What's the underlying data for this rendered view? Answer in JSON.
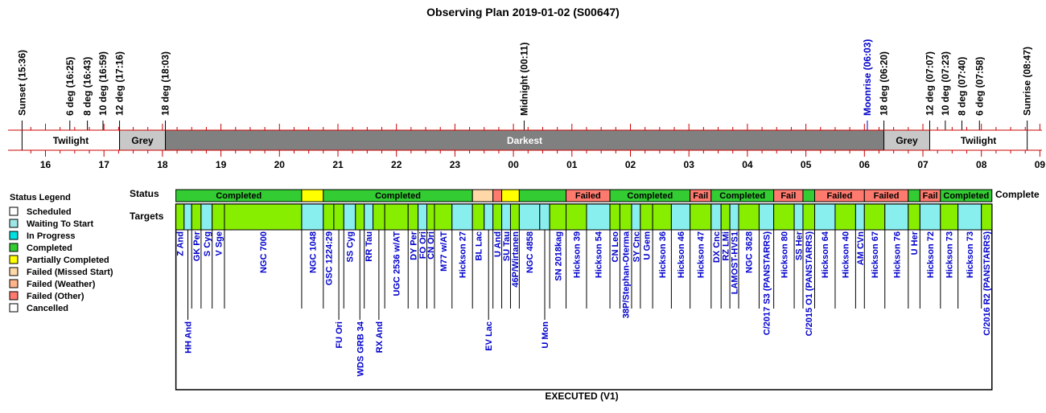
{
  "chart_data": {
    "type": "timeline",
    "title": "Observing Plan 2019-01-02 (S00647)",
    "footer": "EXECUTED (V1)",
    "hour_range": [
      15.5,
      33.0
    ],
    "hour_ticks": [
      {
        "label": "16",
        "h": 16
      },
      {
        "label": "17",
        "h": 17
      },
      {
        "label": "18",
        "h": 18
      },
      {
        "label": "19",
        "h": 19
      },
      {
        "label": "20",
        "h": 20
      },
      {
        "label": "21",
        "h": 21
      },
      {
        "label": "22",
        "h": 22
      },
      {
        "label": "23",
        "h": 23
      },
      {
        "label": "00",
        "h": 24
      },
      {
        "label": "01",
        "h": 25
      },
      {
        "label": "02",
        "h": 26
      },
      {
        "label": "03",
        "h": 27
      },
      {
        "label": "04",
        "h": 28
      },
      {
        "label": "05",
        "h": 29
      },
      {
        "label": "06",
        "h": 30
      },
      {
        "label": "07",
        "h": 31
      },
      {
        "label": "08",
        "h": 32
      },
      {
        "label": "09",
        "h": 33
      }
    ],
    "events": [
      {
        "label": "Sunset (15:36)",
        "h": 15.6,
        "color": "#000000"
      },
      {
        "label": "6 deg (16:25)",
        "h": 16.4167,
        "color": "#000000"
      },
      {
        "label": "8 deg (16:43)",
        "h": 16.7167,
        "color": "#000000"
      },
      {
        "label": "10 deg (16:59)",
        "h": 16.9833,
        "color": "#000000"
      },
      {
        "label": "12 deg (17:16)",
        "h": 17.2667,
        "color": "#000000"
      },
      {
        "label": "18 deg (18:03)",
        "h": 18.05,
        "color": "#000000"
      },
      {
        "label": "Midnight (00:11)",
        "h": 24.1833,
        "color": "#000000"
      },
      {
        "label": "Moonrise (06:03)",
        "h": 30.05,
        "color": "#0000cc"
      },
      {
        "label": "18 deg (06:20)",
        "h": 30.3333,
        "color": "#000000"
      },
      {
        "label": "12 deg (07:07)",
        "h": 31.1167,
        "color": "#000000"
      },
      {
        "label": "10 deg (07:23)",
        "h": 31.3833,
        "color": "#000000"
      },
      {
        "label": "8 deg (07:40)",
        "h": 31.6667,
        "color": "#000000"
      },
      {
        "label": "6 deg (07:58)",
        "h": 31.9667,
        "color": "#000000"
      },
      {
        "label": "Sunrise (08:47)",
        "h": 32.7833,
        "color": "#000000"
      }
    ],
    "sky_bands": [
      {
        "label": "Twilight",
        "start": 15.6,
        "end": 17.2667,
        "color": "#ffffff",
        "text_color": "#000000"
      },
      {
        "label": "Grey",
        "start": 17.2667,
        "end": 18.05,
        "color": "#c8c8c8",
        "text_color": "#000000"
      },
      {
        "label": "Darkest",
        "start": 18.05,
        "end": 30.3333,
        "color": "#808080",
        "text_color": "#ffffff"
      },
      {
        "label": "Grey",
        "start": 30.3333,
        "end": 31.1167,
        "color": "#c8c8c8",
        "text_color": "#000000"
      },
      {
        "label": "Twilight",
        "start": 31.1167,
        "end": 32.7833,
        "color": "#ffffff",
        "text_color": "#000000"
      }
    ],
    "status_row_label": "Status",
    "targets_row_label": "Targets",
    "status_overflow_label": "Complete",
    "status_segments": [
      {
        "label": "Completed",
        "start": 18.23,
        "end": 20.38,
        "status": "completed"
      },
      {
        "label": "",
        "start": 20.38,
        "end": 20.75,
        "status": "partial"
      },
      {
        "label": "Completed",
        "start": 20.75,
        "end": 23.3,
        "status": "completed"
      },
      {
        "label": "",
        "start": 23.3,
        "end": 23.65,
        "status": "missed"
      },
      {
        "label": "",
        "start": 23.65,
        "end": 23.8,
        "status": "failed"
      },
      {
        "label": "",
        "start": 23.8,
        "end": 24.1,
        "status": "partial"
      },
      {
        "label": "",
        "start": 24.1,
        "end": 24.9,
        "status": "completed"
      },
      {
        "label": "Failed",
        "start": 24.9,
        "end": 25.65,
        "status": "failed"
      },
      {
        "label": "Completed",
        "start": 25.65,
        "end": 27.02,
        "status": "completed"
      },
      {
        "label": "Fail",
        "start": 27.02,
        "end": 27.38,
        "status": "failed"
      },
      {
        "label": "Completed",
        "start": 27.38,
        "end": 28.45,
        "status": "completed"
      },
      {
        "label": "Fail",
        "start": 28.45,
        "end": 28.95,
        "status": "failed"
      },
      {
        "label": "",
        "start": 28.95,
        "end": 29.15,
        "status": "completed"
      },
      {
        "label": "Failed",
        "start": 29.15,
        "end": 30.0,
        "status": "failed"
      },
      {
        "label": "Failed",
        "start": 30.0,
        "end": 30.75,
        "status": "failed"
      },
      {
        "label": "",
        "start": 30.75,
        "end": 30.95,
        "status": "completed"
      },
      {
        "label": "Fail",
        "start": 30.95,
        "end": 31.3,
        "status": "failed"
      },
      {
        "label": "Completed",
        "start": 31.3,
        "end": 32.18,
        "status": "completed"
      }
    ],
    "targets": [
      {
        "name": "Z And",
        "start": 18.23,
        "end": 18.37,
        "pos": "upper",
        "fill": "green"
      },
      {
        "name": "HH And",
        "start": 18.37,
        "end": 18.5,
        "pos": "lower",
        "fill": "cyan"
      },
      {
        "name": "GK Per",
        "start": 18.5,
        "end": 18.66,
        "pos": "upper",
        "fill": "green"
      },
      {
        "name": "S Cyg",
        "start": 18.66,
        "end": 18.85,
        "pos": "upper",
        "fill": "cyan"
      },
      {
        "name": "V Sge",
        "start": 18.85,
        "end": 19.06,
        "pos": "upper",
        "fill": "green"
      },
      {
        "name": "NGC 7000",
        "start": 19.06,
        "end": 20.38,
        "pos": "upper",
        "fill": "green"
      },
      {
        "name": "NGC 1048",
        "start": 20.38,
        "end": 20.75,
        "pos": "upper",
        "fill": "cyan"
      },
      {
        "name": "GSC 1224:29",
        "start": 20.75,
        "end": 20.93,
        "pos": "upper",
        "fill": "green"
      },
      {
        "name": "FU Ori",
        "start": 20.93,
        "end": 21.1,
        "pos": "lower",
        "fill": "green"
      },
      {
        "name": "SS Cyg",
        "start": 21.1,
        "end": 21.3,
        "pos": "upper",
        "fill": "cyan"
      },
      {
        "name": "WDS GRB 34",
        "start": 21.3,
        "end": 21.45,
        "pos": "lower",
        "fill": "green"
      },
      {
        "name": "RR Tau",
        "start": 21.45,
        "end": 21.6,
        "pos": "upper",
        "fill": "cyan"
      },
      {
        "name": "RX And",
        "start": 21.6,
        "end": 21.8,
        "pos": "lower",
        "fill": "green"
      },
      {
        "name": "UGC 2536 w/AT",
        "start": 21.8,
        "end": 22.2,
        "pos": "upper",
        "fill": "green"
      },
      {
        "name": "DY Per",
        "start": 22.2,
        "end": 22.37,
        "pos": "upper",
        "fill": "green"
      },
      {
        "name": "FO Ori",
        "start": 22.37,
        "end": 22.52,
        "pos": "upper",
        "fill": "cyan"
      },
      {
        "name": "CN Ori",
        "start": 22.52,
        "end": 22.65,
        "pos": "upper",
        "fill": "green"
      },
      {
        "name": "M77 w/AT",
        "start": 22.65,
        "end": 22.95,
        "pos": "upper",
        "fill": "green"
      },
      {
        "name": "Hickson 27",
        "start": 22.95,
        "end": 23.3,
        "pos": "upper",
        "fill": "cyan"
      },
      {
        "name": "BL Lac",
        "start": 23.3,
        "end": 23.5,
        "pos": "upper",
        "fill": "green"
      },
      {
        "name": "EV Lac",
        "start": 23.5,
        "end": 23.65,
        "pos": "lower",
        "fill": "cyan"
      },
      {
        "name": "U And",
        "start": 23.65,
        "end": 23.8,
        "pos": "upper",
        "fill": "green"
      },
      {
        "name": "SU Tau",
        "start": 23.8,
        "end": 23.95,
        "pos": "upper",
        "fill": "cyan"
      },
      {
        "name": "46P/Wirtanen",
        "start": 23.95,
        "end": 24.1,
        "pos": "upper",
        "fill": "green"
      },
      {
        "name": "NGC 4858",
        "start": 24.1,
        "end": 24.45,
        "pos": "upper",
        "fill": "cyan"
      },
      {
        "name": "U Mon",
        "start": 24.45,
        "end": 24.62,
        "pos": "lower",
        "fill": "cyan"
      },
      {
        "name": "SN 2018kag",
        "start": 24.62,
        "end": 24.9,
        "pos": "upper",
        "fill": "green"
      },
      {
        "name": "Hickson 39",
        "start": 24.9,
        "end": 25.25,
        "pos": "upper",
        "fill": "green"
      },
      {
        "name": "Hickson 54",
        "start": 25.25,
        "end": 25.65,
        "pos": "upper",
        "fill": "cyan"
      },
      {
        "name": "CN Leo",
        "start": 25.65,
        "end": 25.82,
        "pos": "upper",
        "fill": "green"
      },
      {
        "name": "38P/Stephan-Oterma",
        "start": 25.82,
        "end": 26.02,
        "pos": "upper",
        "fill": "green"
      },
      {
        "name": "SY Cnc",
        "start": 26.02,
        "end": 26.17,
        "pos": "upper",
        "fill": "cyan"
      },
      {
        "name": "U Gem",
        "start": 26.17,
        "end": 26.38,
        "pos": "upper",
        "fill": "green"
      },
      {
        "name": "Hickson 36",
        "start": 26.38,
        "end": 26.7,
        "pos": "upper",
        "fill": "green"
      },
      {
        "name": "Hickson 46",
        "start": 26.7,
        "end": 27.02,
        "pos": "upper",
        "fill": "cyan"
      },
      {
        "name": "Hickson 47",
        "start": 27.02,
        "end": 27.38,
        "pos": "upper",
        "fill": "green"
      },
      {
        "name": "DX Cnc",
        "start": 27.38,
        "end": 27.55,
        "pos": "upper",
        "fill": "cyan"
      },
      {
        "name": "RZ LMi",
        "start": 27.55,
        "end": 27.7,
        "pos": "upper",
        "fill": "green"
      },
      {
        "name": "LAMOST-HVS1",
        "start": 27.7,
        "end": 27.85,
        "pos": "upper",
        "fill": "cyan"
      },
      {
        "name": "NGC 3628",
        "start": 27.85,
        "end": 28.2,
        "pos": "upper",
        "fill": "green"
      },
      {
        "name": "C/2017 S3 (PANSTARRS)",
        "start": 28.2,
        "end": 28.45,
        "pos": "upper",
        "fill": "cyan"
      },
      {
        "name": "Hickson 80",
        "start": 28.45,
        "end": 28.8,
        "pos": "upper",
        "fill": "green"
      },
      {
        "name": "SS Her",
        "start": 28.8,
        "end": 28.95,
        "pos": "upper",
        "fill": "cyan"
      },
      {
        "name": "C/2015 O1 (PANSTARRS)",
        "start": 28.95,
        "end": 29.15,
        "pos": "upper",
        "fill": "green"
      },
      {
        "name": "Hickson 64",
        "start": 29.15,
        "end": 29.5,
        "pos": "upper",
        "fill": "cyan"
      },
      {
        "name": "Hickson 40",
        "start": 29.5,
        "end": 29.85,
        "pos": "upper",
        "fill": "green"
      },
      {
        "name": "AM CVn",
        "start": 29.85,
        "end": 30.0,
        "pos": "upper",
        "fill": "cyan"
      },
      {
        "name": "Hickson 67",
        "start": 30.0,
        "end": 30.35,
        "pos": "upper",
        "fill": "green"
      },
      {
        "name": "Hickson 76",
        "start": 30.35,
        "end": 30.75,
        "pos": "upper",
        "fill": "cyan"
      },
      {
        "name": "U Her",
        "start": 30.75,
        "end": 30.95,
        "pos": "upper",
        "fill": "green"
      },
      {
        "name": "Hickson 72",
        "start": 30.95,
        "end": 31.3,
        "pos": "upper",
        "fill": "cyan"
      },
      {
        "name": "Hickson 73",
        "start": 31.3,
        "end": 31.6,
        "pos": "upper",
        "fill": "green"
      },
      {
        "name": "Hickson 73",
        "start": 31.6,
        "end": 32.0,
        "pos": "upper",
        "fill": "cyan"
      },
      {
        "name": "C/2016 R2 (PANSTARRS)",
        "start": 32.0,
        "end": 32.18,
        "pos": "upper",
        "fill": "green"
      }
    ],
    "legend": {
      "title": "Status Legend",
      "entries": [
        {
          "label": "Scheduled",
          "color": "#ffffff"
        },
        {
          "label": "Waiting To Start",
          "color": "#9ee7e7"
        },
        {
          "label": "In Progress",
          "color": "#00e0e0"
        },
        {
          "label": "Completed",
          "color": "#33cc33"
        },
        {
          "label": "Partially Completed",
          "color": "#ffff00"
        },
        {
          "label": "Failed (Missed Start)",
          "color": "#ffd8a8"
        },
        {
          "label": "Failed (Weather)",
          "color": "#ffb48c"
        },
        {
          "label": "Failed (Other)",
          "color": "#ff7a6e"
        },
        {
          "label": "Cancelled",
          "color": "#ffffff"
        }
      ]
    },
    "colors": {
      "completed": "#33cc33",
      "partial": "#ffff00",
      "missed": "#ffd8a8",
      "failed": "#ff7a6e",
      "target_green": "#88ee00",
      "target_cyan": "#88eeee",
      "axis_red": "#cc0000",
      "label_blue": "#0000cc"
    }
  }
}
